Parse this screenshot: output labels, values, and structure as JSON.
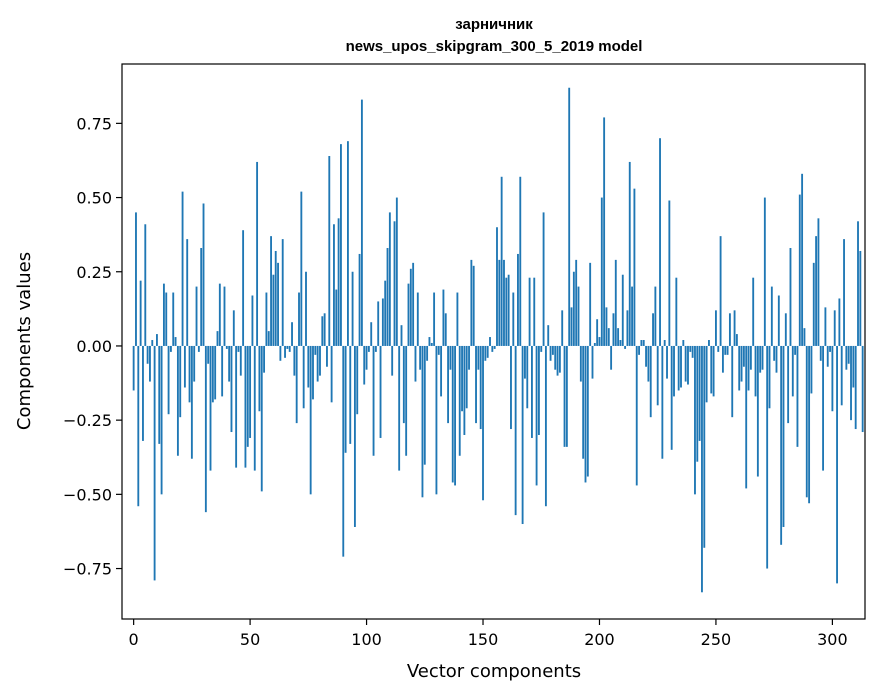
{
  "chart_data": {
    "type": "bar",
    "title_line1": "зарничник",
    "title_line2": "news_upos_skipgram_300_5_2019 model",
    "xlabel": "Vector components",
    "ylabel": "Components values",
    "xlim": [
      -5,
      314
    ],
    "ylim": [
      -0.92,
      0.95
    ],
    "x_ticks": [
      0,
      50,
      100,
      150,
      200,
      250,
      300
    ],
    "x_tick_labels": [
      "0",
      "50",
      "100",
      "150",
      "200",
      "250",
      "300"
    ],
    "y_ticks": [
      -0.75,
      -0.5,
      -0.25,
      0.0,
      0.25,
      0.5,
      0.75
    ],
    "y_tick_labels": [
      "−0.75",
      "−0.50",
      "−0.25",
      "0.00",
      "0.25",
      "0.50",
      "0.75"
    ],
    "bar_color": "#1f77b4",
    "values": [
      -0.15,
      0.45,
      -0.54,
      0.22,
      -0.32,
      0.41,
      -0.06,
      -0.12,
      0.02,
      -0.79,
      0.04,
      -0.33,
      -0.5,
      0.21,
      0.18,
      -0.23,
      -0.02,
      0.18,
      0.03,
      -0.37,
      -0.24,
      0.52,
      -0.14,
      0.36,
      -0.19,
      -0.38,
      -0.12,
      0.2,
      -0.02,
      0.33,
      0.48,
      -0.56,
      -0.06,
      -0.42,
      -0.19,
      -0.18,
      0.05,
      0.21,
      -0.17,
      0.2,
      -0.01,
      -0.12,
      -0.29,
      0.12,
      -0.41,
      -0.02,
      -0.1,
      0.39,
      -0.41,
      -0.34,
      -0.31,
      0.17,
      -0.42,
      0.62,
      -0.22,
      -0.49,
      -0.09,
      0.18,
      0.05,
      0.37,
      0.24,
      0.32,
      0.28,
      -0.05,
      0.36,
      -0.04,
      -0.01,
      -0.02,
      0.08,
      -0.1,
      -0.26,
      0.18,
      0.52,
      -0.21,
      0.25,
      -0.14,
      -0.5,
      -0.18,
      -0.03,
      -0.12,
      -0.1,
      0.1,
      0.11,
      -0.07,
      0.64,
      -0.19,
      0.41,
      0.19,
      0.43,
      0.68,
      -0.71,
      -0.36,
      0.69,
      -0.33,
      0.25,
      -0.61,
      -0.23,
      0.31,
      0.83,
      -0.13,
      -0.08,
      -0.02,
      0.08,
      -0.37,
      -0.02,
      0.15,
      -0.31,
      0.16,
      0.22,
      0.33,
      0.45,
      -0.1,
      0.42,
      0.5,
      -0.42,
      0.07,
      -0.26,
      -0.37,
      0.21,
      0.26,
      0.28,
      -0.12,
      0.18,
      -0.08,
      -0.51,
      -0.4,
      -0.05,
      0.03,
      0.01,
      0.18,
      -0.5,
      -0.03,
      -0.17,
      0.19,
      0.11,
      -0.26,
      -0.08,
      -0.46,
      -0.47,
      0.18,
      -0.37,
      -0.22,
      -0.3,
      -0.21,
      -0.08,
      0.29,
      0.27,
      -0.26,
      -0.08,
      -0.28,
      -0.52,
      -0.05,
      -0.04,
      0.03,
      -0.02,
      -0.01,
      0.4,
      0.29,
      0.57,
      0.29,
      0.23,
      0.24,
      -0.28,
      0.18,
      -0.57,
      0.31,
      0.57,
      -0.6,
      -0.11,
      -0.21,
      0.23,
      -0.31,
      0.23,
      -0.47,
      -0.3,
      -0.02,
      0.45,
      -0.54,
      0.07,
      -0.05,
      -0.03,
      -0.08,
      -0.1,
      -0.09,
      0.12,
      -0.34,
      -0.34,
      0.87,
      0.13,
      0.25,
      0.29,
      0.2,
      -0.12,
      -0.38,
      -0.46,
      -0.44,
      0.28,
      -0.11,
      0.01,
      0.09,
      0.03,
      0.5,
      0.77,
      0.13,
      0.06,
      -0.08,
      0.11,
      0.29,
      0.06,
      0.02,
      0.24,
      -0.01,
      0.12,
      0.62,
      0.2,
      0.53,
      -0.47,
      -0.03,
      0.02,
      0.02,
      -0.07,
      -0.12,
      -0.24,
      0.11,
      0.2,
      -0.2,
      0.7,
      -0.38,
      0.02,
      -0.11,
      0.49,
      -0.35,
      -0.17,
      0.23,
      -0.15,
      -0.14,
      0.02,
      -0.12,
      -0.13,
      -0.02,
      -0.04,
      -0.5,
      -0.39,
      -0.32,
      -0.83,
      -0.68,
      -0.19,
      0.02,
      -0.16,
      -0.17,
      0.12,
      -0.02,
      0.37,
      -0.09,
      -0.03,
      -0.03,
      0.11,
      -0.24,
      0.12,
      0.04,
      -0.15,
      -0.12,
      -0.07,
      -0.48,
      -0.15,
      -0.08,
      0.23,
      -0.17,
      -0.44,
      -0.09,
      -0.08,
      0.5,
      -0.75,
      -0.21,
      0.2,
      -0.05,
      -0.09,
      0.17,
      -0.67,
      -0.61,
      0.11,
      -0.26,
      0.33,
      -0.17,
      -0.03,
      -0.34,
      0.51,
      0.58,
      0.06,
      -0.51,
      -0.53,
      -0.16,
      0.28,
      0.37,
      0.43,
      -0.05,
      -0.42,
      0.13,
      -0.07,
      -0.02,
      -0.22,
      0.12,
      -0.8,
      0.16,
      -0.2,
      0.36,
      -0.08,
      -0.06,
      -0.25,
      -0.14,
      -0.28,
      0.42,
      0.32,
      -0.29
    ]
  }
}
